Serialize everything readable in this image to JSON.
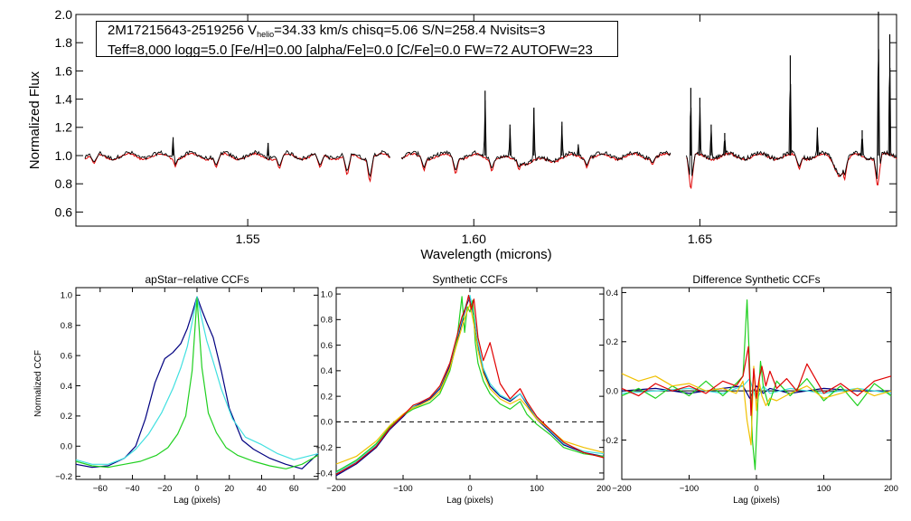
{
  "infobox": {
    "line1_star": "2M17215643-2519256",
    "line1_v": "V",
    "line1_vsub": "helio",
    "line1_rest": "=34.33 km/s  chisq=5.06  S/N=258.4  Nvisits=3",
    "line2": "Teff=8,000 logg=5.0 [Fe/H]=0.00 [alpha/Fe]=0.0 [C/Fe]=0.0 FW=72 AUTOFW=23"
  },
  "colors": {
    "observed": "#000000",
    "model": "#e00000",
    "dark_blue": "#000080",
    "cyan": "#40e0e0",
    "green": "#20d020",
    "yellow": "#f0c000",
    "red": "#e00000"
  },
  "chart_data": [
    {
      "type": "line",
      "title": "",
      "xlabel": "Wavelength (microns)",
      "ylabel": "Normalized Flux",
      "xlim": [
        1.512,
        1.6935
      ],
      "ylim": [
        0.5,
        2.0
      ],
      "xticks": [
        "1.55",
        "1.60",
        "1.65"
      ],
      "yticks": [
        "0.6",
        "0.8",
        "1.0",
        "1.2",
        "1.4",
        "1.6",
        "1.8",
        "2.0"
      ],
      "segments": [
        [
          1.514,
          1.5815
        ],
        [
          1.584,
          1.6435
        ],
        [
          1.647,
          1.6935
        ]
      ],
      "emission_lines": [
        [
          1.5335,
          1.13
        ],
        [
          1.5545,
          1.09
        ],
        [
          1.6025,
          1.46
        ],
        [
          1.608,
          1.22
        ],
        [
          1.6133,
          1.34
        ],
        [
          1.6195,
          1.24
        ],
        [
          1.6231,
          1.08
        ],
        [
          1.648,
          1.48
        ],
        [
          1.65,
          1.41
        ],
        [
          1.6525,
          1.22
        ],
        [
          1.6555,
          1.16
        ],
        [
          1.67,
          1.71
        ],
        [
          1.676,
          1.2
        ],
        [
          1.6859,
          1.18
        ],
        [
          1.6895,
          2.02
        ],
        [
          1.692,
          1.86
        ]
      ],
      "absorption_lines": [
        [
          1.516,
          0.94
        ],
        [
          1.534,
          0.92
        ],
        [
          1.543,
          0.91
        ],
        [
          1.557,
          0.9
        ],
        [
          1.566,
          0.91
        ],
        [
          1.572,
          0.85
        ],
        [
          1.577,
          0.8
        ],
        [
          1.589,
          0.89
        ],
        [
          1.596,
          0.86
        ],
        [
          1.604,
          0.88
        ],
        [
          1.61,
          0.89
        ],
        [
          1.625,
          0.91
        ],
        [
          1.6395,
          0.93
        ],
        [
          1.648,
          0.75
        ],
        [
          1.672,
          0.9
        ],
        [
          1.682,
          0.82
        ],
        [
          1.6893,
          0.77
        ]
      ],
      "series": [
        {
          "name": "observed",
          "color": "#000000"
        },
        {
          "name": "model",
          "color": "#e00000"
        }
      ]
    },
    {
      "type": "line",
      "title": "apStar−relative CCFs",
      "xlabel": "Lag (pixels)",
      "ylabel": "Normalized CCF",
      "xlim": [
        -75,
        75
      ],
      "ylim": [
        -0.22,
        1.05
      ],
      "xticks": [
        "−60",
        "−40",
        "−20",
        "0",
        "20",
        "40",
        "60"
      ],
      "yticks": [
        "−0.2",
        "0.0",
        "0.2",
        "0.4",
        "0.6",
        "0.8",
        "1.0"
      ],
      "series": [
        {
          "name": "dark blue",
          "color": "#000080",
          "x": [
            -75,
            -65,
            -55,
            -45,
            -38,
            -32,
            -26,
            -20,
            -15,
            -10,
            -6,
            -3,
            0,
            3,
            6,
            10,
            15,
            20,
            28,
            35,
            45,
            55,
            65,
            75
          ],
          "y": [
            -0.12,
            -0.14,
            -0.13,
            -0.08,
            0.0,
            0.18,
            0.42,
            0.58,
            0.62,
            0.68,
            0.78,
            0.88,
            0.99,
            0.9,
            0.82,
            0.72,
            0.5,
            0.25,
            0.04,
            -0.02,
            -0.08,
            -0.12,
            -0.15,
            -0.05
          ]
        },
        {
          "name": "cyan",
          "color": "#40e0e0",
          "x": [
            -75,
            -65,
            -55,
            -45,
            -38,
            -30,
            -22,
            -15,
            -10,
            -6,
            -3,
            0,
            3,
            6,
            10,
            15,
            22,
            30,
            40,
            50,
            60,
            75
          ],
          "y": [
            -0.09,
            -0.12,
            -0.12,
            -0.08,
            -0.02,
            0.08,
            0.22,
            0.38,
            0.52,
            0.66,
            0.82,
            0.99,
            0.84,
            0.7,
            0.56,
            0.38,
            0.18,
            0.06,
            0.01,
            -0.05,
            -0.09,
            -0.05
          ]
        },
        {
          "name": "green",
          "color": "#20d020",
          "x": [
            -75,
            -65,
            -55,
            -45,
            -35,
            -25,
            -18,
            -12,
            -7,
            -3,
            0,
            3,
            7,
            12,
            18,
            25,
            35,
            45,
            55,
            65,
            75
          ],
          "y": [
            -0.1,
            -0.13,
            -0.14,
            -0.12,
            -0.1,
            -0.06,
            -0.01,
            0.08,
            0.2,
            0.5,
            0.98,
            0.52,
            0.22,
            0.09,
            -0.01,
            -0.06,
            -0.1,
            -0.13,
            -0.15,
            -0.12,
            -0.06
          ]
        }
      ]
    },
    {
      "type": "line",
      "title": "Synthetic CCFs",
      "xlabel": "Lag (pixels)",
      "ylabel": "",
      "xlim": [
        -200,
        200
      ],
      "ylim": [
        -0.45,
        1.05
      ],
      "xticks": [
        "−200",
        "−100",
        "0",
        "100",
        "200"
      ],
      "yticks": [
        "−0.4",
        "−0.2",
        "0.0",
        "0.2",
        "0.4",
        "0.6",
        "0.8",
        "1.0"
      ],
      "reference_line": {
        "y": 0.0,
        "style": "dashed"
      },
      "series": [
        {
          "name": "dark blue",
          "color": "#000080",
          "x": [
            -200,
            -170,
            -140,
            -120,
            -100,
            -85,
            -75,
            -60,
            -45,
            -30,
            -20,
            -12,
            -6,
            0,
            6,
            12,
            20,
            30,
            45,
            60,
            75,
            85,
            100,
            120,
            140,
            170,
            200
          ],
          "y": [
            -0.42,
            -0.33,
            -0.2,
            -0.06,
            0.04,
            0.12,
            0.14,
            0.18,
            0.26,
            0.44,
            0.62,
            0.78,
            0.9,
            0.98,
            0.82,
            0.6,
            0.4,
            0.28,
            0.2,
            0.16,
            0.22,
            0.14,
            0.02,
            -0.08,
            -0.18,
            -0.24,
            -0.27
          ]
        },
        {
          "name": "cyan",
          "color": "#40e0e0",
          "x": [
            -200,
            -170,
            -140,
            -120,
            -100,
            -85,
            -75,
            -60,
            -45,
            -30,
            -20,
            -12,
            -6,
            0,
            6,
            12,
            20,
            30,
            45,
            60,
            75,
            85,
            100,
            120,
            140,
            170,
            200
          ],
          "y": [
            -0.4,
            -0.31,
            -0.18,
            -0.05,
            0.05,
            0.12,
            0.15,
            0.19,
            0.27,
            0.46,
            0.64,
            0.8,
            0.92,
            0.99,
            0.84,
            0.62,
            0.42,
            0.3,
            0.21,
            0.17,
            0.22,
            0.15,
            0.03,
            -0.07,
            -0.17,
            -0.23,
            -0.25
          ]
        },
        {
          "name": "green",
          "color": "#20d020",
          "x": [
            -200,
            -170,
            -140,
            -120,
            -100,
            -85,
            -75,
            -60,
            -45,
            -30,
            -20,
            -12,
            -8,
            -4,
            0,
            4,
            8,
            12,
            20,
            30,
            45,
            60,
            75,
            85,
            100,
            120,
            140,
            170,
            200
          ],
          "y": [
            -0.39,
            -0.3,
            -0.17,
            -0.04,
            0.05,
            0.1,
            0.12,
            0.15,
            0.22,
            0.4,
            0.62,
            0.98,
            0.7,
            0.9,
            0.86,
            0.95,
            0.62,
            0.46,
            0.32,
            0.22,
            0.14,
            0.1,
            0.16,
            0.06,
            -0.02,
            -0.1,
            -0.2,
            -0.25,
            -0.27
          ]
        },
        {
          "name": "yellow",
          "color": "#f0c000",
          "x": [
            -200,
            -170,
            -140,
            -120,
            -100,
            -85,
            -75,
            -60,
            -45,
            -30,
            -20,
            -12,
            -6,
            0,
            6,
            12,
            20,
            30,
            45,
            60,
            75,
            85,
            100,
            120,
            140,
            170,
            200
          ],
          "y": [
            -0.33,
            -0.27,
            -0.15,
            -0.03,
            0.06,
            0.11,
            0.13,
            0.17,
            0.24,
            0.42,
            0.6,
            0.74,
            0.84,
            0.92,
            0.76,
            0.56,
            0.38,
            0.26,
            0.18,
            0.14,
            0.18,
            0.12,
            0.02,
            -0.06,
            -0.15,
            -0.2,
            -0.24
          ]
        },
        {
          "name": "red",
          "color": "#e00000",
          "x": [
            -200,
            -170,
            -140,
            -120,
            -100,
            -85,
            -75,
            -60,
            -45,
            -30,
            -20,
            -12,
            -6,
            -2,
            2,
            6,
            12,
            20,
            30,
            45,
            60,
            75,
            85,
            100,
            120,
            140,
            170,
            200
          ],
          "y": [
            -0.41,
            -0.32,
            -0.19,
            -0.05,
            0.05,
            0.13,
            0.15,
            0.19,
            0.28,
            0.46,
            0.66,
            0.82,
            0.9,
            0.99,
            0.88,
            0.96,
            0.66,
            0.48,
            0.62,
            0.3,
            0.18,
            0.26,
            0.16,
            0.04,
            -0.06,
            -0.16,
            -0.24,
            -0.28
          ]
        }
      ]
    },
    {
      "type": "line",
      "title": "Difference Synthetic CCFs",
      "xlabel": "Lag (pixels)",
      "ylabel": "",
      "xlim": [
        -200,
        200
      ],
      "ylim": [
        -0.36,
        0.42
      ],
      "xticks": [
        "−200",
        "−100",
        "0",
        "100",
        "200"
      ],
      "yticks": [
        "−0.2",
        "0.0",
        "0.2",
        "0.4"
      ],
      "reference_line": {
        "y": 0.0,
        "style": "solid"
      },
      "series": [
        {
          "name": "dark blue",
          "color": "#000080",
          "x": [
            -200,
            -150,
            -100,
            -50,
            -20,
            -10,
            0,
            10,
            20,
            50,
            100,
            150,
            200
          ],
          "y": [
            0.0,
            0.01,
            -0.01,
            0.01,
            0.02,
            -0.03,
            0.02,
            -0.01,
            0.01,
            -0.01,
            0.01,
            0.0,
            0.0
          ]
        },
        {
          "name": "cyan",
          "color": "#40e0e0",
          "x": [
            -200,
            -150,
            -100,
            -50,
            -20,
            -10,
            0,
            10,
            20,
            50,
            100,
            150,
            200
          ],
          "y": [
            -0.01,
            0.0,
            0.01,
            -0.01,
            0.02,
            0.05,
            -0.04,
            0.02,
            -0.01,
            0.01,
            -0.01,
            0.01,
            -0.01
          ]
        },
        {
          "name": "green",
          "color": "#20d020",
          "x": [
            -200,
            -175,
            -150,
            -125,
            -100,
            -75,
            -50,
            -30,
            -20,
            -14,
            -10,
            -6,
            -2,
            2,
            6,
            10,
            18,
            30,
            50,
            75,
            100,
            125,
            150,
            175,
            200
          ],
          "y": [
            -0.02,
            0.01,
            -0.03,
            0.02,
            -0.02,
            0.04,
            -0.02,
            0.03,
            0.06,
            0.37,
            0.1,
            -0.2,
            -0.32,
            -0.05,
            0.12,
            0.02,
            -0.06,
            0.04,
            -0.02,
            0.05,
            -0.04,
            0.02,
            -0.06,
            0.03,
            -0.02
          ]
        },
        {
          "name": "yellow",
          "color": "#f0c000",
          "x": [
            -200,
            -175,
            -150,
            -125,
            -100,
            -75,
            -50,
            -30,
            -20,
            -14,
            -8,
            -4,
            0,
            4,
            8,
            14,
            20,
            30,
            50,
            75,
            100,
            125,
            150,
            175,
            200
          ],
          "y": [
            0.07,
            0.04,
            0.06,
            0.02,
            0.03,
            0.0,
            0.01,
            -0.01,
            0.04,
            -0.12,
            -0.22,
            0.1,
            -0.08,
            0.04,
            -0.02,
            -0.06,
            -0.03,
            -0.04,
            -0.01,
            0.02,
            -0.03,
            -0.01,
            0.01,
            -0.02,
            0.0
          ]
        },
        {
          "name": "red",
          "color": "#e00000",
          "x": [
            -200,
            -175,
            -150,
            -125,
            -100,
            -75,
            -50,
            -30,
            -20,
            -12,
            -8,
            -4,
            0,
            4,
            8,
            14,
            20,
            30,
            45,
            60,
            75,
            100,
            125,
            150,
            175,
            200
          ],
          "y": [
            0.01,
            -0.02,
            0.03,
            0.0,
            0.02,
            -0.01,
            0.04,
            0.02,
            0.06,
            0.18,
            -0.1,
            0.09,
            -0.03,
            0.05,
            0.1,
            0.02,
            0.08,
            0.01,
            0.05,
            0.0,
            0.11,
            -0.01,
            0.03,
            -0.02,
            0.04,
            0.06
          ]
        }
      ]
    }
  ]
}
